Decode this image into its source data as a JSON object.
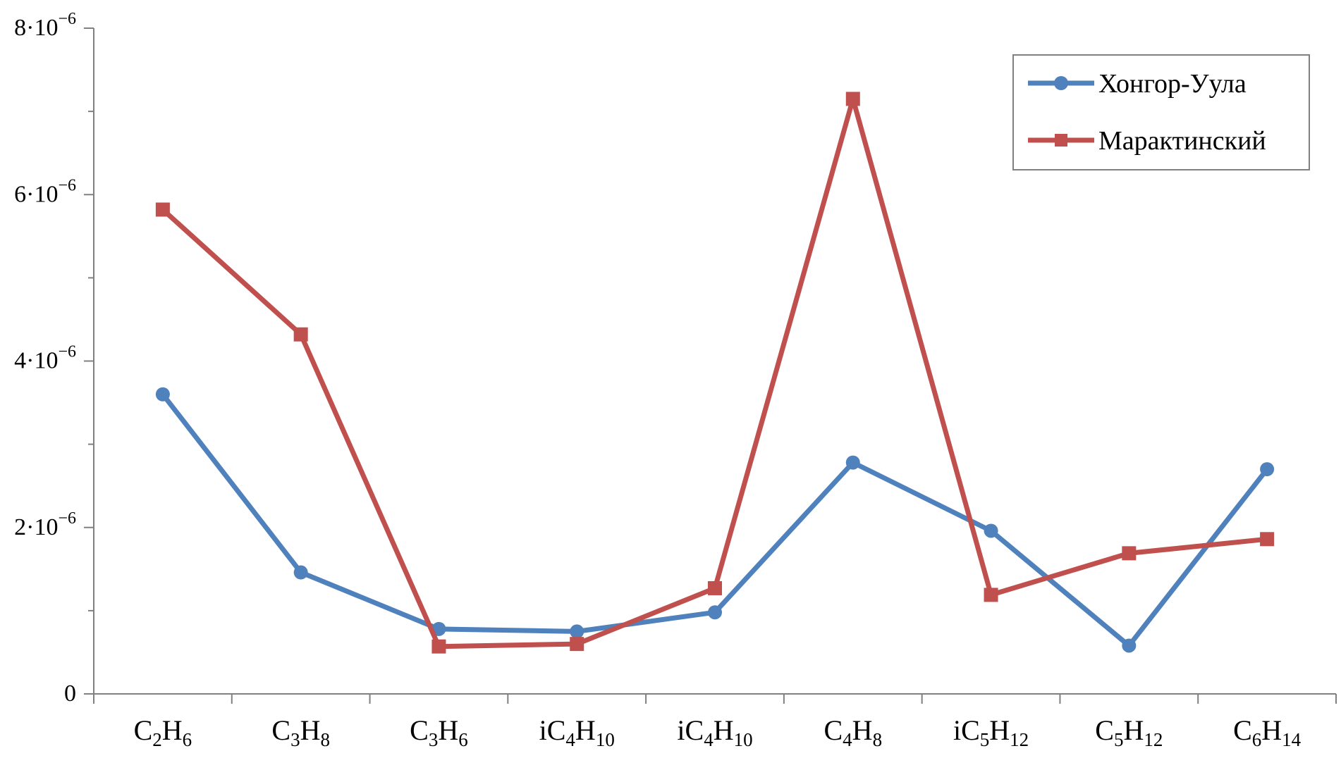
{
  "chart_data": {
    "type": "line",
    "categories": [
      {
        "base": "C",
        "sub1": "2",
        "mid": "H",
        "sub2": "6"
      },
      {
        "base": "C",
        "sub1": "3",
        "mid": "H",
        "sub2": "8"
      },
      {
        "base": "C",
        "sub1": "3",
        "mid": "H",
        "sub2": "6"
      },
      {
        "base": "iC",
        "sub1": "4",
        "mid": "H",
        "sub2": "10"
      },
      {
        "base": "iC",
        "sub1": "4",
        "mid": "H",
        "sub2": "10"
      },
      {
        "base": "C",
        "sub1": "4",
        "mid": "H",
        "sub2": "8"
      },
      {
        "base": "iC",
        "sub1": "5",
        "mid": "H",
        "sub2": "12"
      },
      {
        "base": "C",
        "sub1": "5",
        "mid": "H",
        "sub2": "12"
      },
      {
        "base": "C",
        "sub1": "6",
        "mid": "H",
        "sub2": "14"
      }
    ],
    "series": [
      {
        "name": "Хонгор-Уула",
        "color": "#4f81bd",
        "marker": "circle",
        "values": [
          3.6e-06,
          1.46e-06,
          7.8e-07,
          7.5e-07,
          9.8e-07,
          2.78e-06,
          1.96e-06,
          5.8e-07,
          2.7e-06
        ]
      },
      {
        "name": "Марактинский",
        "color": "#c0504d",
        "marker": "square",
        "values": [
          5.82e-06,
          4.32e-06,
          5.7e-07,
          6e-07,
          1.27e-06,
          7.15e-06,
          1.19e-06,
          1.69e-06,
          1.86e-06
        ]
      }
    ],
    "ylim": [
      0,
      8e-06
    ],
    "yticks": [
      {
        "value": 0,
        "label": "0"
      },
      {
        "value": 2e-06,
        "mant": "2·10",
        "exp": "−6"
      },
      {
        "value": 4e-06,
        "mant": "4·10",
        "exp": "−6"
      },
      {
        "value": 6e-06,
        "mant": "6·10",
        "exp": "−6"
      },
      {
        "value": 8e-06,
        "mant": "8·10",
        "exp": "−6"
      }
    ],
    "yminor": [
      1e-06,
      3e-06,
      5e-06,
      7e-06
    ],
    "legend_position": "top-right",
    "grid": false
  }
}
